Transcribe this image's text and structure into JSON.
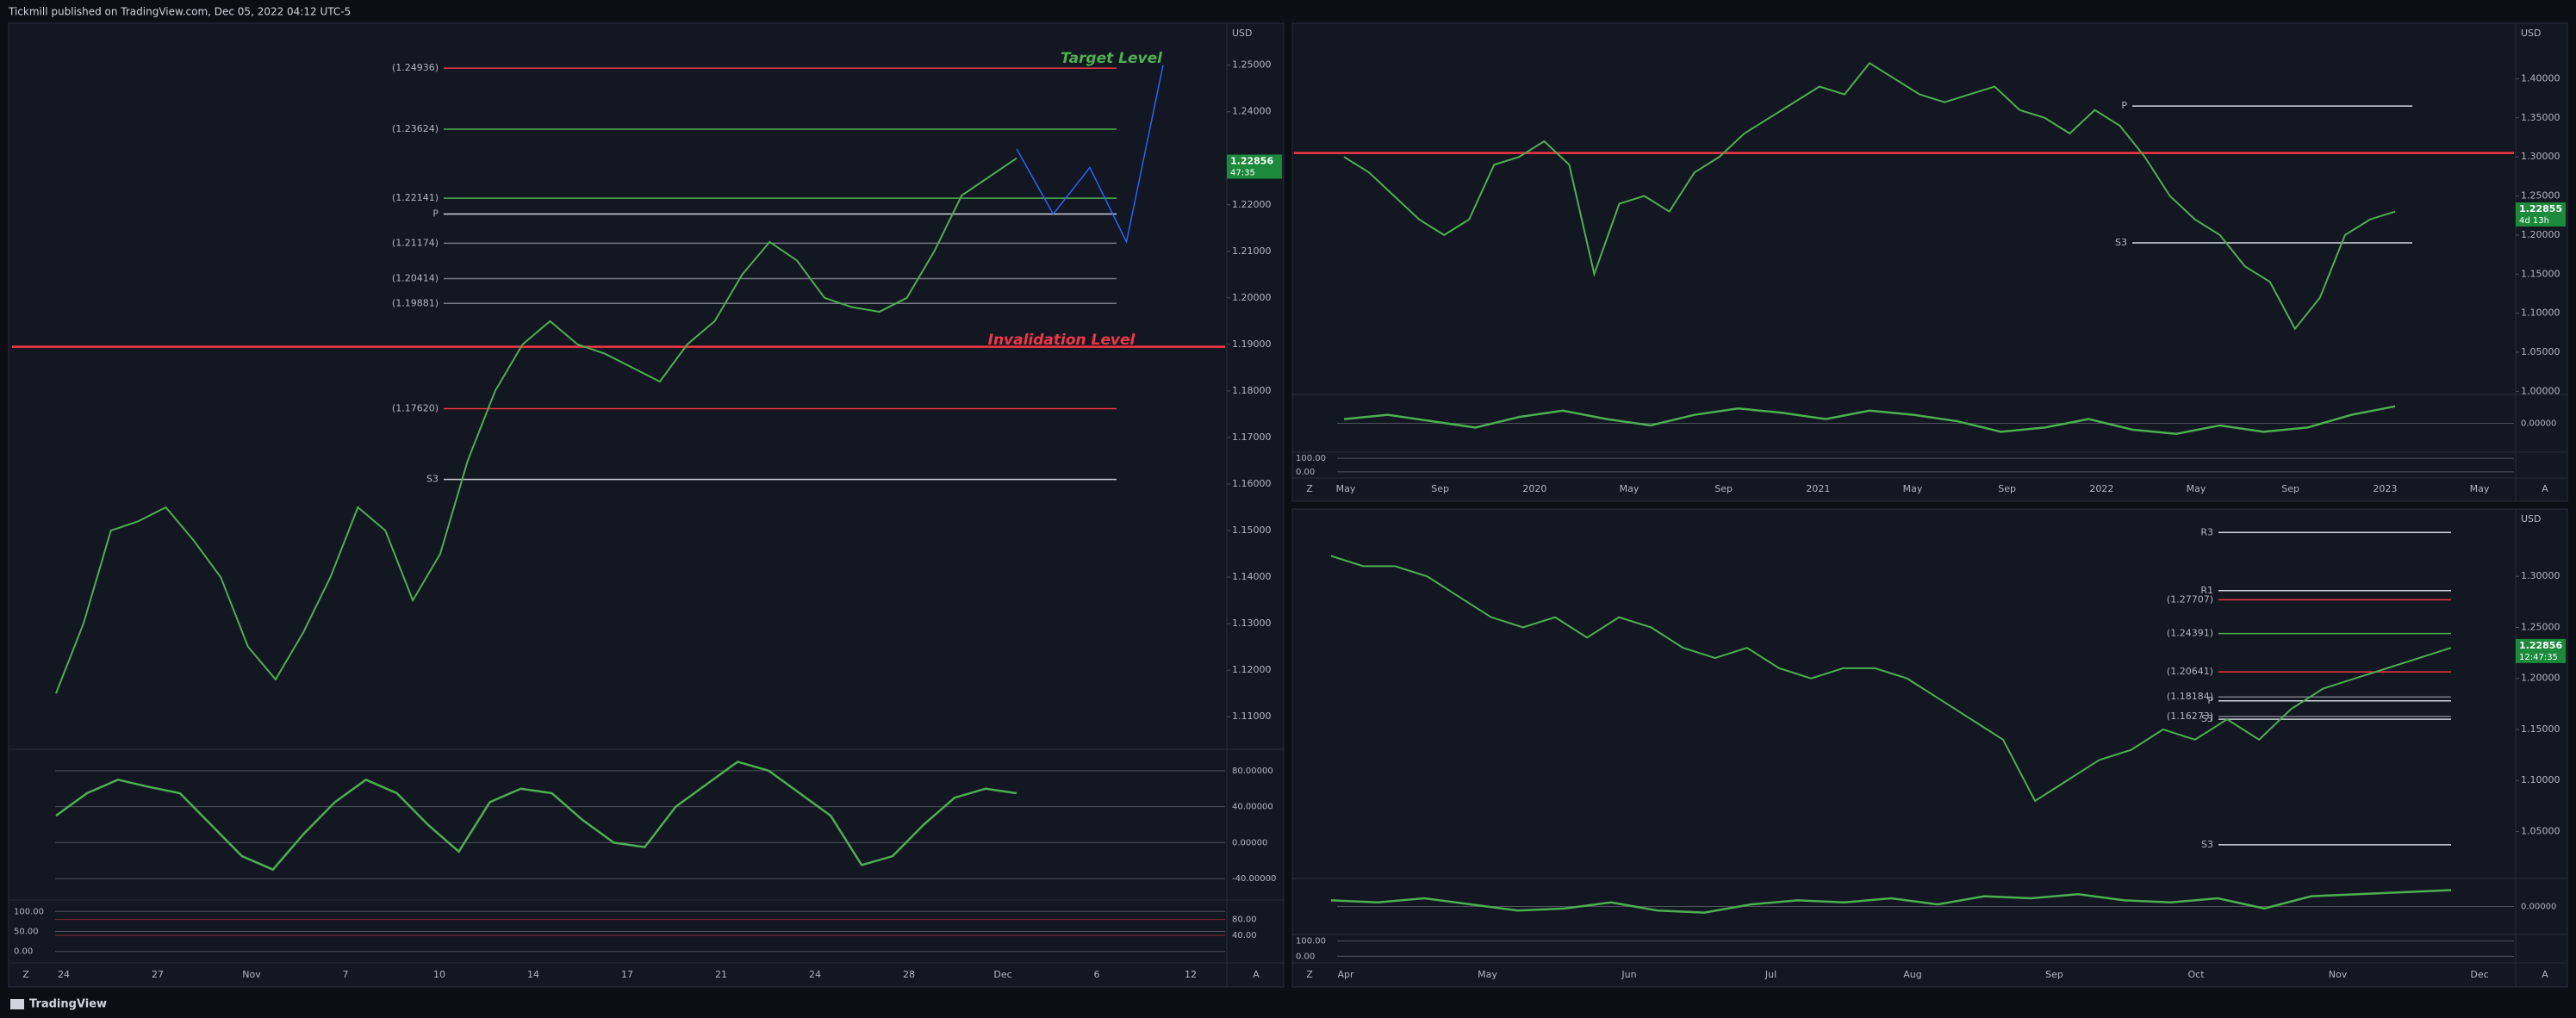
{
  "header": {
    "title": "Tickmill published on TradingView.com, Dec 05, 2022 04:12 UTC-5"
  },
  "footer": {
    "brand": "TradingView"
  },
  "panels": [
    {
      "type": "line",
      "price_axis": {
        "currency": "USD",
        "ylim": [
          1.103,
          1.259
        ],
        "ticks": [
          {
            "value": 1.25,
            "label": "1.25000"
          },
          {
            "value": 1.24,
            "label": "1.24000"
          },
          {
            "value": 1.22,
            "label": "1.22000"
          },
          {
            "value": 1.21,
            "label": "1.21000"
          },
          {
            "value": 1.2,
            "label": "1.20000"
          },
          {
            "value": 1.19,
            "label": "1.19000"
          },
          {
            "value": 1.18,
            "label": "1.18000"
          },
          {
            "value": 1.17,
            "label": "1.17000"
          },
          {
            "value": 1.16,
            "label": "1.16000"
          },
          {
            "value": 1.15,
            "label": "1.15000"
          },
          {
            "value": 1.14,
            "label": "1.14000"
          },
          {
            "value": 1.13,
            "label": "1.13000"
          },
          {
            "value": 1.12,
            "label": "1.12000"
          },
          {
            "value": 1.11,
            "label": "1.11000"
          }
        ]
      },
      "close": [
        1.115,
        1.13,
        1.15,
        1.152,
        1.155,
        1.148,
        1.14,
        1.125,
        1.118,
        1.128,
        1.14,
        1.155,
        1.15,
        1.135,
        1.145,
        1.165,
        1.18,
        1.19,
        1.195,
        1.19,
        1.188,
        1.185,
        1.182,
        1.19,
        1.195,
        1.205,
        1.212,
        1.208,
        1.2,
        1.198,
        1.197,
        1.2,
        1.21,
        1.222,
        1.226,
        1.23
      ],
      "projection": [
        1.232,
        1.218,
        1.228,
        1.212,
        1.25
      ],
      "levels": [
        {
          "value": 1.24936,
          "label": "(1.24936)",
          "color": "#f23645"
        },
        {
          "value": 1.23624,
          "label": "(1.23624)",
          "color": "#4caf50"
        },
        {
          "value": 1.22141,
          "label": "(1.22141)",
          "color": "#4caf50"
        },
        {
          "value": 1.21174,
          "label": "(1.21174)",
          "color": "#787b86"
        },
        {
          "value": 1.20414,
          "label": "(1.20414)",
          "color": "#787b86"
        },
        {
          "value": 1.19881,
          "label": "(1.19881)",
          "color": "#787b86"
        },
        {
          "value": 1.1762,
          "label": "(1.17620)",
          "color": "#f23645"
        },
        {
          "value": 1.1895,
          "color": "#f23645"
        },
        {
          "value": 1.161,
          "label": "S3",
          "color": "#d1d4dc"
        },
        {
          "value": 1.218,
          "label": "P",
          "color": "#d1d4dc"
        }
      ],
      "annotations": [
        {
          "text": "Target  Level",
          "value": 1.251,
          "color": "#4caf50"
        },
        {
          "text": "Invalidation Level",
          "value": 1.1905,
          "color": "#f23645"
        }
      ],
      "tag": {
        "value": 1.22856,
        "label": "1.22856",
        "countdown": "47:35"
      },
      "time_labels": [
        "24",
        "27",
        "Nov",
        "7",
        "10",
        "14",
        "17",
        "21",
        "24",
        "28",
        "Dec",
        "6",
        "12"
      ],
      "corner": [
        "Z",
        "A"
      ],
      "oscillators": [
        {
          "ylim": [
            -60,
            100
          ],
          "ticks": [
            {
              "value": 80,
              "label": "80.00000"
            },
            {
              "value": 40,
              "label": "40.00000"
            },
            {
              "value": 0,
              "label": "0.00000"
            },
            {
              "value": -40,
              "label": "-40.00000"
            }
          ],
          "values": [
            30,
            55,
            70,
            62,
            55,
            20,
            -15,
            -30,
            10,
            45,
            70,
            55,
            20,
            -10,
            45,
            60,
            55,
            25,
            0,
            -5,
            40,
            65,
            90,
            80,
            55,
            30,
            -25,
            -15,
            20,
            50,
            60,
            55
          ]
        },
        {
          "ylim": [
            -20,
            120
          ],
          "ticks": [
            {
              "value": 100,
              "label": "100.00"
            },
            {
              "value": 50,
              "label": "50.00"
            },
            {
              "value": 0,
              "label": "0.00"
            }
          ],
          "right_ticks": [
            {
              "value": 80,
              "label": "80.00"
            },
            {
              "value": 40,
              "label": "40.00"
            }
          ]
        }
      ]
    },
    {
      "type": "line",
      "price_axis": {
        "currency": "USD",
        "ylim": [
          0.996,
          1.471
        ],
        "ticks": [
          {
            "value": 1.4,
            "label": "1.40000"
          },
          {
            "value": 1.35,
            "label": "1.35000"
          },
          {
            "value": 1.3,
            "label": "1.30000"
          },
          {
            "value": 1.25,
            "label": "1.25000"
          },
          {
            "value": 1.2,
            "label": "1.20000"
          },
          {
            "value": 1.15,
            "label": "1.15000"
          },
          {
            "value": 1.1,
            "label": "1.10000"
          },
          {
            "value": 1.05,
            "label": "1.05000"
          },
          {
            "value": 1.0,
            "label": "1.00000"
          }
        ]
      },
      "close": [
        1.3,
        1.28,
        1.25,
        1.22,
        1.2,
        1.22,
        1.29,
        1.3,
        1.32,
        1.29,
        1.15,
        1.24,
        1.25,
        1.23,
        1.28,
        1.3,
        1.33,
        1.35,
        1.37,
        1.39,
        1.38,
        1.42,
        1.4,
        1.38,
        1.37,
        1.38,
        1.39,
        1.36,
        1.35,
        1.33,
        1.36,
        1.34,
        1.3,
        1.25,
        1.22,
        1.2,
        1.16,
        1.14,
        1.08,
        1.12,
        1.2,
        1.22,
        1.23
      ],
      "levels": [
        {
          "value": 1.305,
          "color": "#f23645"
        },
        {
          "value": 1.365,
          "label": "P",
          "color": "#d1d4dc"
        },
        {
          "value": 1.19,
          "label": "S3",
          "color": "#d1d4dc"
        }
      ],
      "tag": {
        "value": 1.22855,
        "label": "1.22855",
        "countdown": "4d 13h"
      },
      "time_labels": [
        "May",
        "Sep",
        "2020",
        "May",
        "Sep",
        "2021",
        "May",
        "Sep",
        "2022",
        "May",
        "Sep",
        "2023",
        "May"
      ],
      "corner": [
        "Z",
        "A"
      ],
      "oscillators": [
        {
          "ylim": [
            -60,
            60
          ],
          "ticks": [
            {
              "value": 0,
              "label": "0.00000"
            }
          ],
          "values": [
            10,
            20,
            5,
            -10,
            15,
            30,
            10,
            -5,
            20,
            35,
            25,
            10,
            30,
            20,
            5,
            -20,
            -10,
            10,
            -15,
            -25,
            -5,
            -20,
            -10,
            20,
            40
          ]
        },
        {
          "ylim": [
            -20,
            120
          ],
          "ticks": [
            {
              "value": 100,
              "label": "100.00"
            },
            {
              "value": 0,
              "label": "0.00"
            }
          ]
        }
      ]
    },
    {
      "type": "line",
      "price_axis": {
        "currency": "USD",
        "ylim": [
          1.004,
          1.366
        ],
        "ticks": [
          {
            "value": 1.3,
            "label": "1.30000"
          },
          {
            "value": 1.25,
            "label": "1.25000"
          },
          {
            "value": 1.2,
            "label": "1.20000"
          },
          {
            "value": 1.15,
            "label": "1.15000"
          },
          {
            "value": 1.1,
            "label": "1.10000"
          },
          {
            "value": 1.05,
            "label": "1.05000"
          }
        ]
      },
      "close": [
        1.32,
        1.31,
        1.31,
        1.3,
        1.28,
        1.26,
        1.25,
        1.26,
        1.24,
        1.26,
        1.25,
        1.23,
        1.22,
        1.23,
        1.21,
        1.2,
        1.21,
        1.21,
        1.2,
        1.18,
        1.16,
        1.14,
        1.08,
        1.1,
        1.12,
        1.13,
        1.15,
        1.14,
        1.16,
        1.14,
        1.17,
        1.19,
        1.2,
        1.21,
        1.22,
        1.23
      ],
      "levels": [
        {
          "value": 1.27707,
          "label": "(1.27707)",
          "color": "#f23645"
        },
        {
          "value": 1.24391,
          "label": "(1.24391)",
          "color": "#4caf50"
        },
        {
          "value": 1.20641,
          "label": "(1.20641)",
          "color": "#f23645"
        },
        {
          "value": 1.18184,
          "label": "(1.18184)",
          "color": "#787b86"
        },
        {
          "value": 1.16273,
          "label": "(1.16273)",
          "color": "#787b86"
        },
        {
          "value": 1.343,
          "label": "R3",
          "color": "#d1d4dc"
        },
        {
          "value": 1.286,
          "label": "R1",
          "color": "#d1d4dc"
        },
        {
          "value": 1.178,
          "label": "P",
          "color": "#d1d4dc"
        },
        {
          "value": 1.16,
          "label": "S3",
          "color": "#d1d4dc"
        },
        {
          "value": 1.037,
          "label": "S3",
          "color": "#d1d4dc"
        }
      ],
      "tag": {
        "value": 1.22856,
        "label": "1.22856",
        "countdown": "12:47:35"
      },
      "time_labels": [
        "Apr",
        "May",
        "Jun",
        "Jul",
        "Aug",
        "Sep",
        "Oct",
        "Nov",
        "Dec"
      ],
      "corner": [
        "Z",
        "A"
      ],
      "oscillators": [
        {
          "ylim": [
            -60,
            60
          ],
          "ticks": [
            {
              "value": 0,
              "label": "0.00000"
            }
          ],
          "values": [
            15,
            10,
            20,
            5,
            -10,
            -5,
            10,
            -10,
            -15,
            5,
            15,
            10,
            20,
            5,
            25,
            20,
            30,
            15,
            10,
            20,
            -5,
            25,
            30,
            35,
            40
          ]
        },
        {
          "ylim": [
            -20,
            120
          ],
          "ticks": [
            {
              "value": 100,
              "label": "100.00"
            },
            {
              "value": 0,
              "label": "0.00"
            }
          ]
        }
      ]
    }
  ]
}
